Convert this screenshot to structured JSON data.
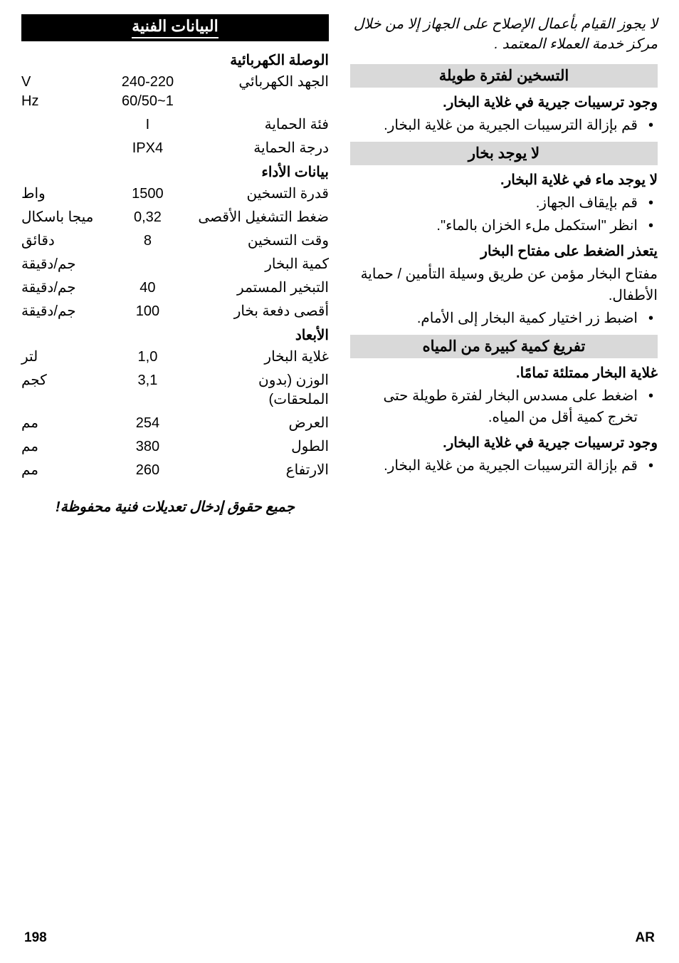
{
  "right": {
    "topNote": "لا يجوز القيام بأعمال الإصلاح على الجهاز إلا من خلال مركز خدمة العملاء المعتمد .",
    "sec1": {
      "title": "التسخين لفترة طويلة",
      "bold1": "وجود ترسيبات جيرية في غلاية البخار.",
      "b1": "قم بإزالة الترسيبات الجيرية من غلاية البخار."
    },
    "sec2": {
      "title": "لا يوجد بخار",
      "bold1": "لا يوجد ماء في غلاية البخار.",
      "b1": "قم بإيقاف الجهاز.",
      "b2": "انظر \"استكمل ملء الخزان بالماء\".",
      "bold2": "يتعذر الضغط على مفتاح البخار",
      "line1": "مفتاح البخار مؤمن عن طريق وسيلة التأمين / حماية الأطفال.",
      "b3": "اضبط زر اختيار كمية البخار إلى الأمام."
    },
    "sec3": {
      "title": "تفريغ كمية كبيرة من المياه",
      "bold1": "غلاية البخار ممتلئة تمامًا.",
      "b1": "اضغط على مسدس البخار لفترة طويلة حتى تخرج كمية أقل من المياه.",
      "bold2": "وجود ترسيبات جيرية في غلاية البخار.",
      "b2": "قم بإزالة الترسيبات الجيرية من غلاية البخار."
    }
  },
  "left": {
    "tableTitle": "البيانات الفنية",
    "sub1": "الوصلة الكهربائية",
    "rows1": [
      {
        "label": "الجهد الكهربائي",
        "value": [
          "240-220",
          "60/50~1"
        ],
        "unit": [
          "V",
          "Hz"
        ]
      },
      {
        "label": "فئة الحماية",
        "value": [
          "I"
        ],
        "unit": [
          ""
        ]
      },
      {
        "label": "درجة الحماية",
        "value": [
          "IPX4"
        ],
        "unit": [
          ""
        ]
      }
    ],
    "sub2": "بيانات الأداء",
    "rows2": [
      {
        "label": "قدرة التسخين",
        "value": "1500",
        "unit": "واط"
      },
      {
        "label": "ضغط التشغيل الأقصى",
        "value": "0,32",
        "unit": "ميجا باسكال"
      },
      {
        "label": "وقت التسخين",
        "value": "8",
        "unit": "دقائق"
      },
      {
        "label": "كمية البخار",
        "value": "",
        "unit": "جم/دقيقة"
      },
      {
        "label": "التبخير المستمر",
        "value": "40",
        "unit": "جم/دقيقة"
      },
      {
        "label": "أقصى دفعة بخار",
        "value": "100",
        "unit": "جم/دقيقة"
      }
    ],
    "sub3": "الأبعاد",
    "rows3": [
      {
        "label": "غلاية البخار",
        "value": "1,0",
        "unit": "لتر"
      },
      {
        "label": "الوزن (بدون الملحقات)",
        "value": "3,1",
        "unit": "كجم"
      },
      {
        "label": "العرض",
        "value": "254",
        "unit": "مم"
      },
      {
        "label": "الطول",
        "value": "380",
        "unit": "مم"
      },
      {
        "label": "الارتفاع",
        "value": "260",
        "unit": "مم"
      }
    ],
    "footnote": "جميع حقوق إدخال تعديلات فنية محفوظة!"
  },
  "footer": {
    "lang": "AR",
    "page": "198"
  }
}
